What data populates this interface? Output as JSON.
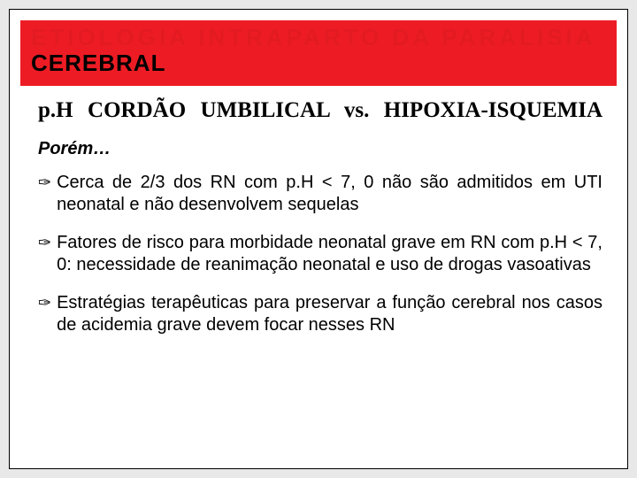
{
  "colors": {
    "title_bg": "#ed1c24",
    "slide_bg": "#ffffff",
    "page_bg": "#e8e8e8",
    "text": "#000000"
  },
  "title": {
    "cutoff_line": "ETIOLOGIA INTRAPARTO DA PARALISIA",
    "visible_line": "CEREBRAL"
  },
  "subtitle": "p.H CORDÃO UMBILICAL vs. HIPOXIA-ISQUEMIA",
  "porem": "Porém…",
  "bullets": [
    "Cerca de 2/3 dos RN com p.H < 7, 0 não são admitidos em UTI neonatal e não desenvolvem sequelas",
    "Fatores de risco para morbidade neonatal grave em RN com p.H < 7, 0: necessidade de reanimação neonatal e uso de drogas vasoativas",
    "Estratégias terapêuticas para preservar a função cerebral nos casos de acidemia grave devem focar nesses RN"
  ],
  "bullet_glyph": "✑"
}
